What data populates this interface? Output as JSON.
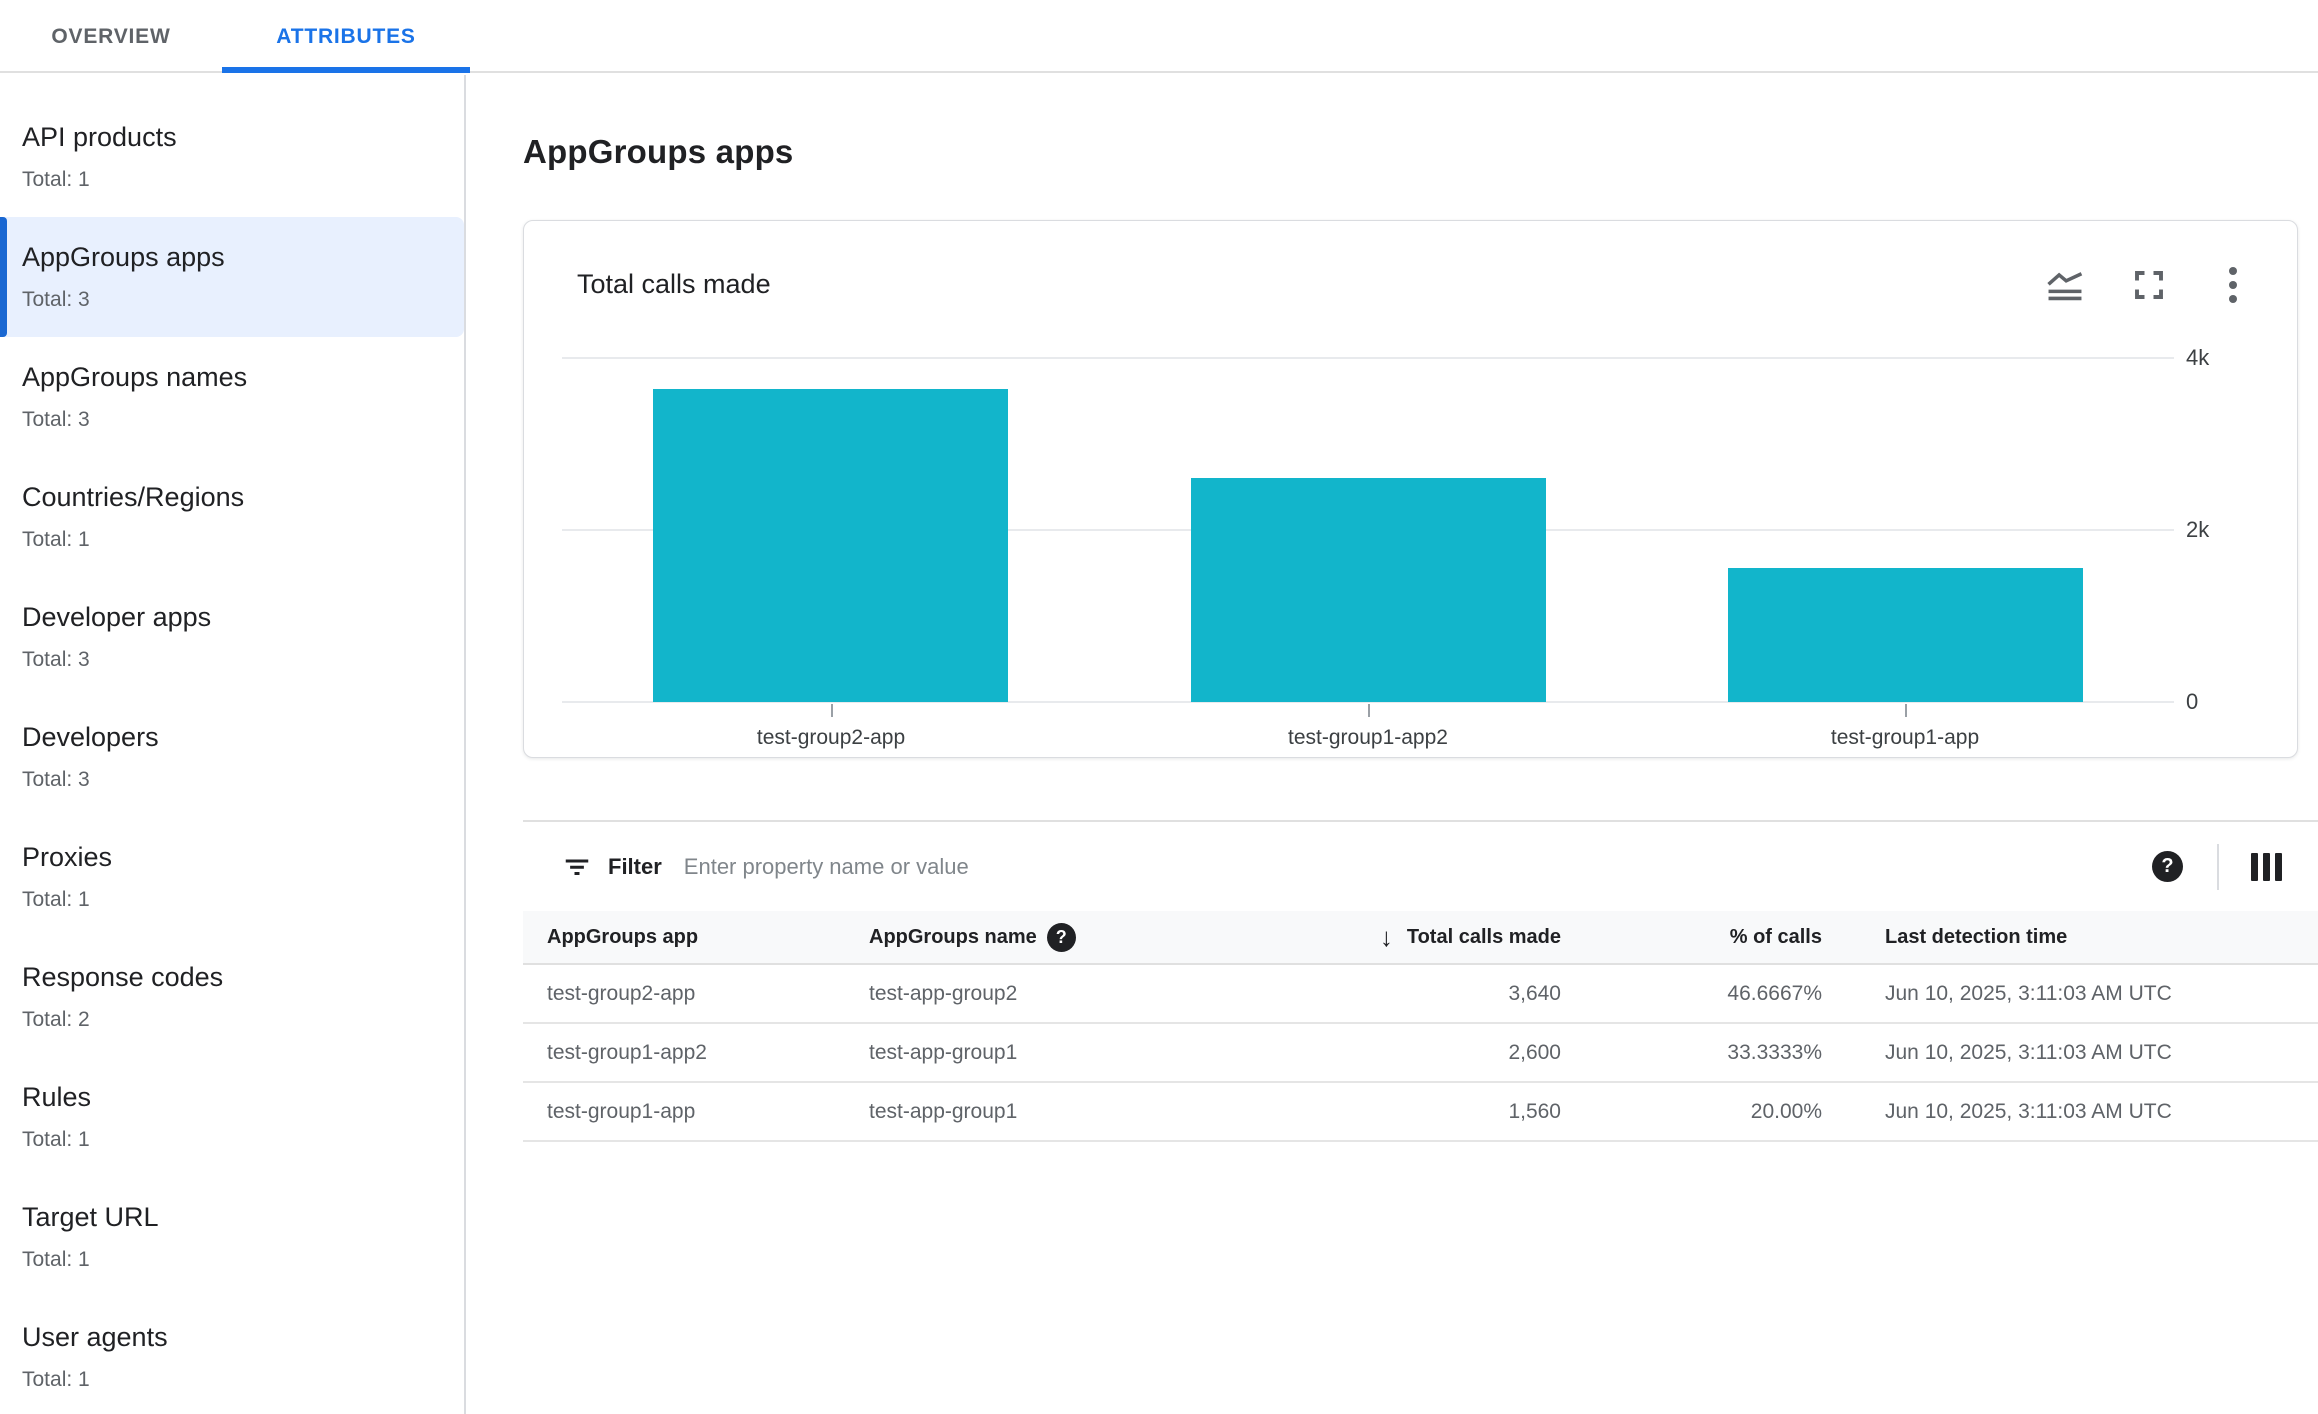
{
  "tabs": [
    {
      "label": "OVERVIEW",
      "active": false
    },
    {
      "label": "ATTRIBUTES",
      "active": true
    }
  ],
  "sidebar": {
    "items": [
      {
        "label": "API products",
        "total": "Total: 1",
        "selected": false
      },
      {
        "label": "AppGroups apps",
        "total": "Total: 3",
        "selected": true
      },
      {
        "label": "AppGroups names",
        "total": "Total: 3",
        "selected": false
      },
      {
        "label": "Countries/Regions",
        "total": "Total: 1",
        "selected": false
      },
      {
        "label": "Developer apps",
        "total": "Total: 3",
        "selected": false
      },
      {
        "label": "Developers",
        "total": "Total: 3",
        "selected": false
      },
      {
        "label": "Proxies",
        "total": "Total: 1",
        "selected": false
      },
      {
        "label": "Response codes",
        "total": "Total: 2",
        "selected": false
      },
      {
        "label": "Rules",
        "total": "Total: 1",
        "selected": false
      },
      {
        "label": "Target URL",
        "total": "Total: 1",
        "selected": false
      },
      {
        "label": "User agents",
        "total": "Total: 1",
        "selected": false
      }
    ]
  },
  "main": {
    "title": "AppGroups apps"
  },
  "chart_card": {
    "title": "Total calls made",
    "icons": [
      "chart-type-icon",
      "fullscreen-icon",
      "more-options-icon"
    ]
  },
  "chart_data": {
    "type": "bar",
    "title": "Total calls made",
    "categories": [
      "test-group2-app",
      "test-group1-app2",
      "test-group1-app"
    ],
    "values": [
      3640,
      2600,
      1560
    ],
    "ylim": [
      0,
      4000
    ],
    "yticks": [
      {
        "value": 0,
        "label": "0"
      },
      {
        "value": 2000,
        "label": "2k"
      },
      {
        "value": 4000,
        "label": "4k"
      }
    ],
    "grid": true,
    "legend": "none",
    "bar_color": "#12b5cb"
  },
  "filter": {
    "label": "Filter",
    "placeholder": "Enter property name or value",
    "help_glyph": "?"
  },
  "table": {
    "columns": [
      {
        "label": "AppGroups app"
      },
      {
        "label": "AppGroups name",
        "help": true,
        "help_glyph": "?"
      },
      {
        "label": "Total calls made",
        "sorted": "desc",
        "sort_glyph": "↓"
      },
      {
        "label": "% of calls"
      },
      {
        "label": "Last detection time"
      }
    ],
    "rows": [
      {
        "app": "test-group2-app",
        "name": "test-app-group2",
        "calls": "3,640",
        "percent": "46.6667%",
        "last_detection": "Jun 10, 2025, 3:11:03 AM UTC"
      },
      {
        "app": "test-group1-app2",
        "name": "test-app-group1",
        "calls": "2,600",
        "percent": "33.3333%",
        "last_detection": "Jun 10, 2025, 3:11:03 AM UTC"
      },
      {
        "app": "test-group1-app",
        "name": "test-app-group1",
        "calls": "1,560",
        "percent": "20.00%",
        "last_detection": "Jun 10, 2025, 3:11:03 AM UTC"
      }
    ]
  },
  "colors": {
    "accent_blue": "#1a73e8",
    "selected_bar_blue": "#1967d2",
    "selected_bg": "#e8f0fe",
    "bar_teal": "#12b5cb",
    "border_light": "#e0e0e0",
    "text_primary": "#202124",
    "text_secondary": "#5f6368"
  }
}
